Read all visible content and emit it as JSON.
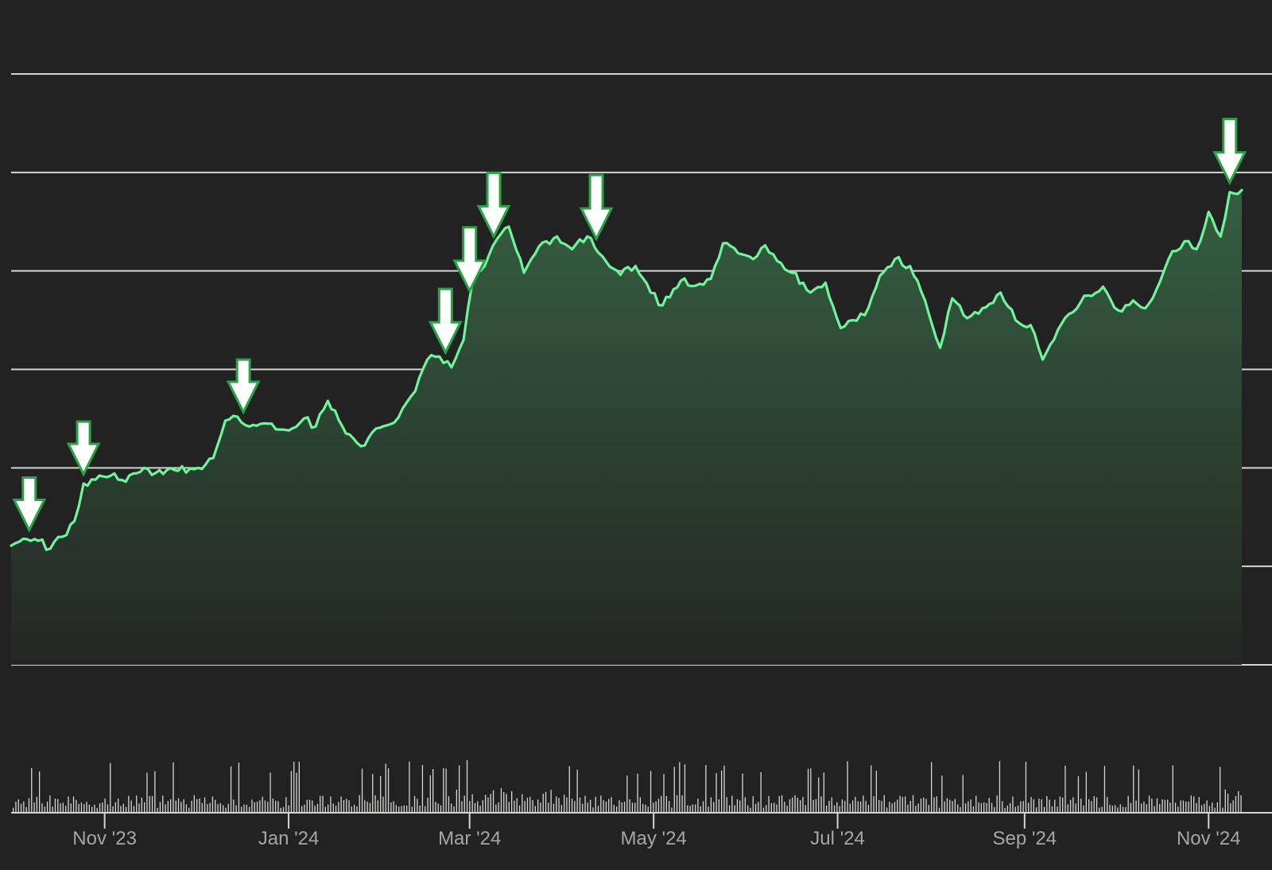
{
  "chart_data": {
    "type": "area",
    "title": "",
    "xlabel": "",
    "ylabel": "",
    "x_ticks": [
      "Nov '23",
      "Jan '24",
      "Mar '24",
      "May '24",
      "Jul '24",
      "Sep '24",
      "Nov '24"
    ],
    "x_range": [
      "2023-10-01",
      "2024-11-12"
    ],
    "y_range": [
      0,
      6
    ],
    "gridlines": 7,
    "y_tick_labels_shown": false,
    "legend": "none",
    "colors": {
      "background": "#232222",
      "line": "#6ef59a",
      "area_top": "#355f41",
      "area_bottom": "#242624",
      "grid": "#d6d4d0",
      "volume": "#d8d6d2",
      "arrow_fill": "#ffffff",
      "arrow_stroke": "#27a546",
      "tick_label": "#a9a6a1"
    },
    "series": [
      {
        "values": [
          [
            "2023-10-01",
            1.21
          ],
          [
            "2023-10-05",
            1.28
          ],
          [
            "2023-10-10",
            1.26
          ],
          [
            "2023-10-14",
            1.18
          ],
          [
            "2023-10-18",
            1.3
          ],
          [
            "2023-10-22",
            1.46
          ],
          [
            "2023-10-25",
            1.84
          ],
          [
            "2023-10-29",
            1.88
          ],
          [
            "2023-11-03",
            1.92
          ],
          [
            "2023-11-08",
            1.86
          ],
          [
            "2023-11-14",
            2.0
          ],
          [
            "2023-11-18",
            1.95
          ],
          [
            "2023-11-24",
            1.98
          ],
          [
            "2023-12-02",
            2.0
          ],
          [
            "2023-12-07",
            2.1
          ],
          [
            "2023-12-11",
            2.48
          ],
          [
            "2023-12-15",
            2.52
          ],
          [
            "2023-12-19",
            2.42
          ],
          [
            "2023-12-25",
            2.45
          ],
          [
            "2024-01-01",
            2.38
          ],
          [
            "2024-01-06",
            2.5
          ],
          [
            "2024-01-10",
            2.42
          ],
          [
            "2024-01-14",
            2.68
          ],
          [
            "2024-01-20",
            2.35
          ],
          [
            "2024-01-25",
            2.22
          ],
          [
            "2024-01-30",
            2.4
          ],
          [
            "2024-02-05",
            2.46
          ],
          [
            "2024-02-12",
            2.78
          ],
          [
            "2024-02-16",
            3.1
          ],
          [
            "2024-02-20",
            3.13
          ],
          [
            "2024-02-24",
            3.02
          ],
          [
            "2024-02-28",
            3.3
          ],
          [
            "2024-03-02",
            3.9
          ],
          [
            "2024-03-06",
            4.05
          ],
          [
            "2024-03-10",
            4.32
          ],
          [
            "2024-03-14",
            4.45
          ],
          [
            "2024-03-19",
            3.98
          ],
          [
            "2024-03-24",
            4.25
          ],
          [
            "2024-03-30",
            4.35
          ],
          [
            "2024-04-04",
            4.22
          ],
          [
            "2024-04-09",
            4.35
          ],
          [
            "2024-04-14",
            4.15
          ],
          [
            "2024-04-20",
            3.96
          ],
          [
            "2024-04-25",
            4.05
          ],
          [
            "2024-04-30",
            3.78
          ],
          [
            "2024-05-04",
            3.65
          ],
          [
            "2024-05-10",
            3.9
          ],
          [
            "2024-05-15",
            3.85
          ],
          [
            "2024-05-20",
            3.92
          ],
          [
            "2024-05-24",
            4.28
          ],
          [
            "2024-05-29",
            4.18
          ],
          [
            "2024-06-03",
            4.12
          ],
          [
            "2024-06-07",
            4.26
          ],
          [
            "2024-06-11",
            4.1
          ],
          [
            "2024-06-16",
            3.98
          ],
          [
            "2024-06-22",
            3.78
          ],
          [
            "2024-06-27",
            3.88
          ],
          [
            "2024-07-02",
            3.42
          ],
          [
            "2024-07-06",
            3.5
          ],
          [
            "2024-07-10",
            3.55
          ],
          [
            "2024-07-15",
            3.95
          ],
          [
            "2024-07-20",
            4.12
          ],
          [
            "2024-07-25",
            4.05
          ],
          [
            "2024-07-30",
            3.7
          ],
          [
            "2024-08-04",
            3.22
          ],
          [
            "2024-08-08",
            3.72
          ],
          [
            "2024-08-13",
            3.52
          ],
          [
            "2024-08-18",
            3.62
          ],
          [
            "2024-08-24",
            3.78
          ],
          [
            "2024-08-29",
            3.5
          ],
          [
            "2024-09-03",
            3.45
          ],
          [
            "2024-09-07",
            3.1
          ],
          [
            "2024-09-12",
            3.4
          ],
          [
            "2024-09-17",
            3.58
          ],
          [
            "2024-09-22",
            3.75
          ],
          [
            "2024-09-27",
            3.84
          ],
          [
            "2024-10-02",
            3.6
          ],
          [
            "2024-10-07",
            3.7
          ],
          [
            "2024-10-11",
            3.62
          ],
          [
            "2024-10-16",
            3.9
          ],
          [
            "2024-10-20",
            4.2
          ],
          [
            "2024-10-24",
            4.3
          ],
          [
            "2024-10-28",
            4.22
          ],
          [
            "2024-11-01",
            4.6
          ],
          [
            "2024-11-05",
            4.35
          ],
          [
            "2024-11-08",
            4.8
          ],
          [
            "2024-11-12",
            4.82
          ]
        ]
      }
    ],
    "annotations": [
      {
        "type": "arrow-down",
        "date": "2023-10-07"
      },
      {
        "type": "arrow-down",
        "date": "2023-10-25"
      },
      {
        "type": "arrow-down",
        "date": "2023-12-17"
      },
      {
        "type": "arrow-down",
        "date": "2024-02-22"
      },
      {
        "type": "arrow-down",
        "date": "2024-03-01"
      },
      {
        "type": "arrow-down",
        "date": "2024-03-09"
      },
      {
        "type": "arrow-down",
        "date": "2024-04-12"
      },
      {
        "type": "arrow-down",
        "date": "2024-11-08"
      }
    ],
    "volume_seed": 1311
  }
}
